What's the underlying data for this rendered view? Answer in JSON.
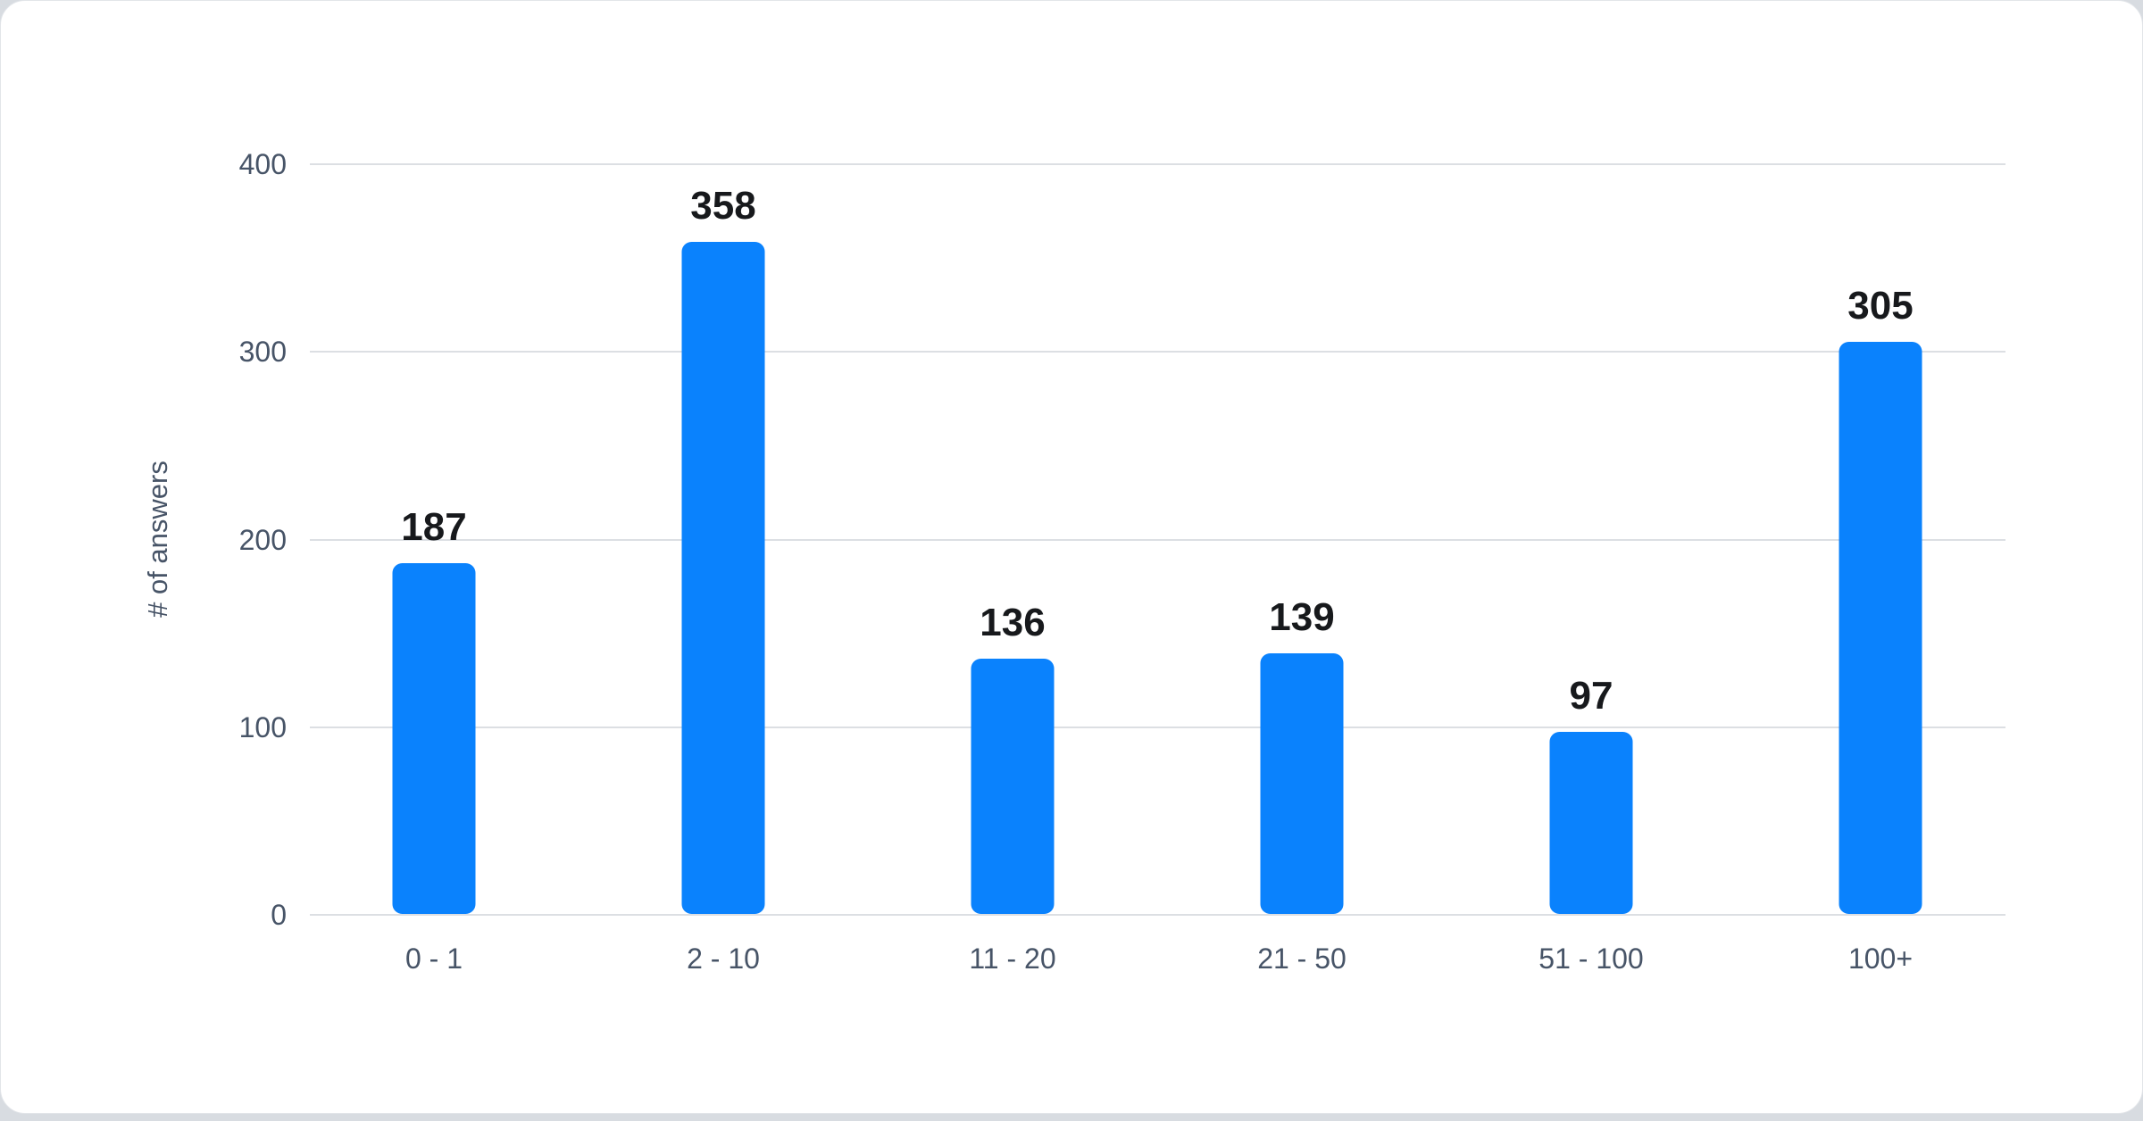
{
  "chart_data": {
    "type": "bar",
    "categories": [
      "0 - 1",
      "2 - 10",
      "11 - 20",
      "21 - 50",
      "51 - 100",
      "100+"
    ],
    "values": [
      187,
      358,
      136,
      139,
      97,
      305
    ],
    "ylabel": "# of answers",
    "xlabel": "",
    "ylim": [
      0,
      400
    ],
    "yticks": [
      0,
      100,
      200,
      300,
      400
    ],
    "grid": true,
    "legend": false,
    "layout": {
      "orientation": "vertical",
      "value_labels": "above-bars",
      "rounded_bars": true
    },
    "colors": {
      "bar": "#0a82fd",
      "value_label": "#17191c",
      "axis_label": "#475467",
      "gridline": "#dcdfe3",
      "background": "#ffffff"
    }
  }
}
